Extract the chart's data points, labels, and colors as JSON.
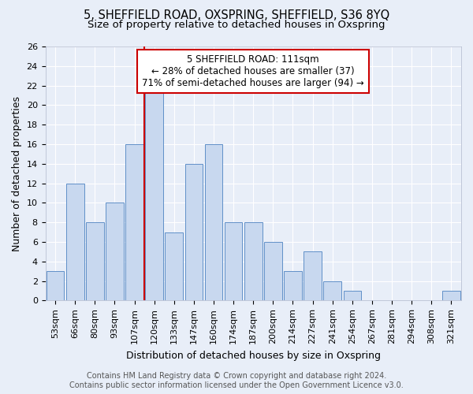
{
  "title1": "5, SHEFFIELD ROAD, OXSPRING, SHEFFIELD, S36 8YQ",
  "title2": "Size of property relative to detached houses in Oxspring",
  "xlabel": "Distribution of detached houses by size in Oxspring",
  "ylabel": "Number of detached properties",
  "categories": [
    "53sqm",
    "66sqm",
    "80sqm",
    "93sqm",
    "107sqm",
    "120sqm",
    "133sqm",
    "147sqm",
    "160sqm",
    "174sqm",
    "187sqm",
    "200sqm",
    "214sqm",
    "227sqm",
    "241sqm",
    "254sqm",
    "267sqm",
    "281sqm",
    "294sqm",
    "308sqm",
    "321sqm"
  ],
  "values": [
    3,
    12,
    8,
    10,
    16,
    22,
    7,
    14,
    16,
    8,
    8,
    6,
    3,
    5,
    2,
    1,
    0,
    0,
    0,
    0,
    1
  ],
  "bar_color": "#c8d8ef",
  "bar_edge_color": "#6090c8",
  "background_color": "#e8eef8",
  "grid_color": "#ffffff",
  "annotation_box_color": "#ffffff",
  "annotation_box_edge": "#cc0000",
  "property_line_color": "#cc0000",
  "property_label": "5 SHEFFIELD ROAD: 111sqm",
  "annotation_line1": "← 28% of detached houses are smaller (37)",
  "annotation_line2": "71% of semi-detached houses are larger (94) →",
  "ylim": [
    0,
    26
  ],
  "yticks": [
    0,
    2,
    4,
    6,
    8,
    10,
    12,
    14,
    16,
    18,
    20,
    22,
    24,
    26
  ],
  "property_line_x": 4.5,
  "footer1": "Contains HM Land Registry data © Crown copyright and database right 2024.",
  "footer2": "Contains public sector information licensed under the Open Government Licence v3.0.",
  "title_fontsize": 10.5,
  "subtitle_fontsize": 9.5,
  "axis_label_fontsize": 9,
  "tick_fontsize": 8,
  "annotation_fontsize": 8.5,
  "footer_fontsize": 7
}
